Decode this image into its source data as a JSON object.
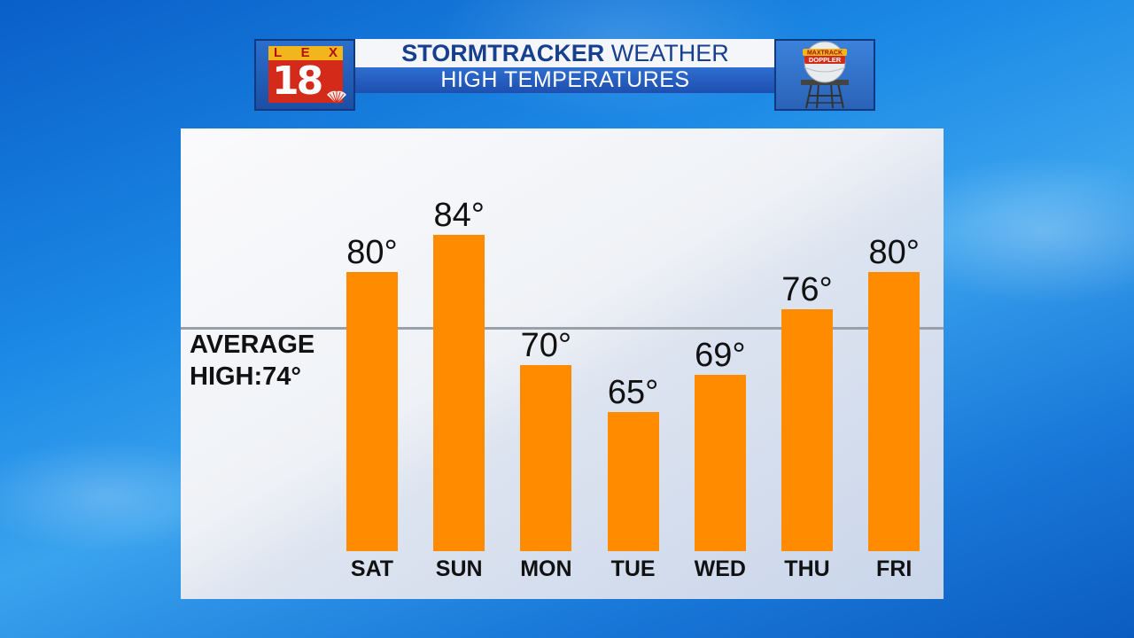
{
  "header": {
    "logo_lex": [
      "L",
      "E",
      "X"
    ],
    "logo_number": "18",
    "title_bold": "STORMTRACKER",
    "title_regular": "WEATHER",
    "subtitle": "HIGH TEMPERATURES",
    "doppler_badge_top": "MAXTRACK",
    "doppler_badge_bottom": "DOPPLER"
  },
  "average": {
    "line1": "AVERAGE",
    "line2": "HIGH:74°",
    "value": 74
  },
  "colors": {
    "bar": "#ff8c00",
    "title_text": "#173f8f",
    "average_line": "#9aa0a8"
  },
  "chart_data": {
    "type": "bar",
    "categories": [
      "SAT",
      "SUN",
      "MON",
      "TUE",
      "WED",
      "THU",
      "FRI"
    ],
    "values": [
      80,
      84,
      70,
      65,
      69,
      76,
      80
    ],
    "value_labels": [
      "80°",
      "84°",
      "70°",
      "65°",
      "69°",
      "76°",
      "80°"
    ],
    "title": "HIGH TEMPERATURES",
    "xlabel": "",
    "ylabel": "",
    "reference_line": 74,
    "grid": false
  }
}
